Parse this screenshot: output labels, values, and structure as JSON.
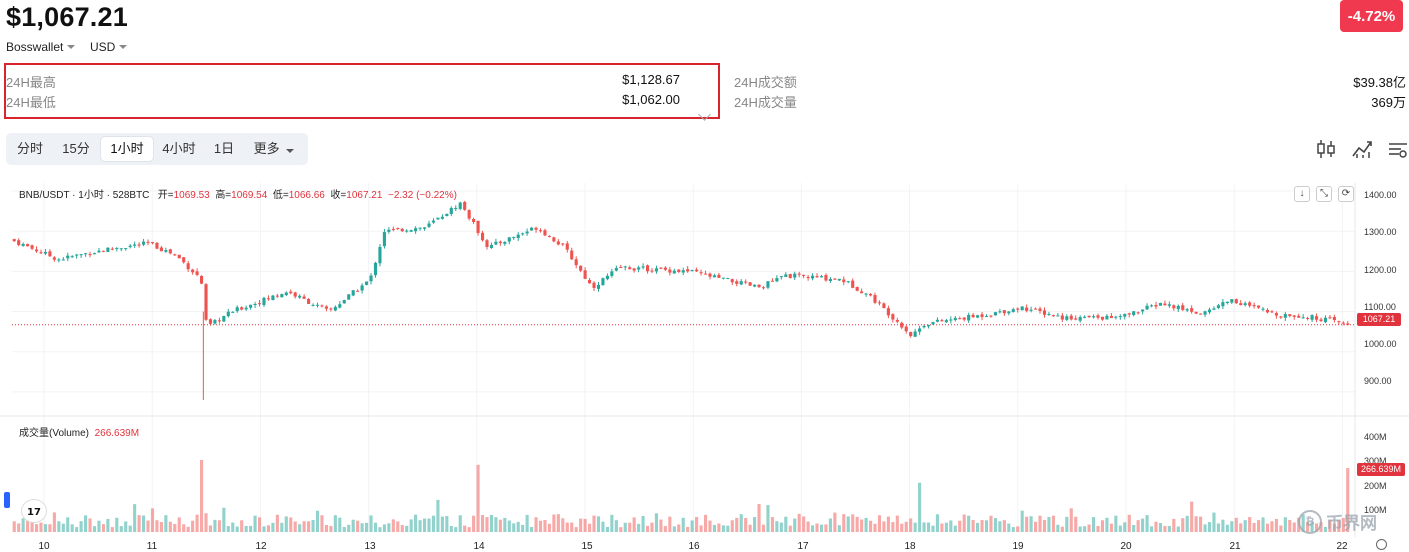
{
  "header": {
    "price": "$1,067.21",
    "change": "-4.72%",
    "exchange": "Bosswallet",
    "currency": "USD"
  },
  "stats": {
    "high_label": "24H最高",
    "high_value": "$1,128.67",
    "low_label": "24H最低",
    "low_value": "$1,062.00",
    "turnover_label": "24H成交额",
    "turnover_value": "$39.38亿",
    "volume_label": "24H成交量",
    "volume_value": "369万"
  },
  "tabs": [
    "分时",
    "15分",
    "1小时",
    "4小时",
    "1日",
    "更多"
  ],
  "active_tab": "1小时",
  "legend": {
    "symbol": "BNB/USDT · 1小时 · 528BTC",
    "open_label": "开=",
    "open": "1069.53",
    "high_label": "高=",
    "high": "1069.54",
    "low_label": "低=",
    "low": "1066.66",
    "close_label": "收=",
    "close": "1067.21",
    "change": "−2.32 (−0.22%)"
  },
  "volume_legend": {
    "label": "成交量(Volume)",
    "value": "266.639M"
  },
  "price_axis": [
    "1400.00",
    "1300.00",
    "1200.00",
    "1100.00",
    "1000.00",
    "900.00"
  ],
  "volume_axis": [
    "400M",
    "300M",
    "200M",
    "100M"
  ],
  "x_axis": [
    "10",
    "11",
    "12",
    "13",
    "14",
    "15",
    "16",
    "17",
    "18",
    "19",
    "20",
    "21",
    "22"
  ],
  "last_price_tag": "1067.21",
  "last_volume_tag": "266.639M",
  "watermark": "币界网",
  "colors": {
    "up": "#26a69a",
    "down": "#ef5350",
    "accent_red": "#e1333d",
    "badge": "#f0394f"
  },
  "chart_data": {
    "type": "candlestick",
    "price_range": [
      850,
      1420
    ],
    "volume_range": [
      0,
      450
    ],
    "close_path": [
      [
        0,
        1280
      ],
      [
        0.035,
        1230
      ],
      [
        0.07,
        1255
      ],
      [
        0.1,
        1270
      ],
      [
        0.12,
        1240
      ],
      [
        0.138,
        1180
      ],
      [
        0.142,
        1060
      ],
      [
        0.16,
        1100
      ],
      [
        0.2,
        1150
      ],
      [
        0.23,
        1100
      ],
      [
        0.26,
        1180
      ],
      [
        0.27,
        1300
      ],
      [
        0.3,
        1310
      ],
      [
        0.325,
        1370
      ],
      [
        0.345,
        1260
      ],
      [
        0.38,
        1310
      ],
      [
        0.4,
        1260
      ],
      [
        0.42,
        1160
      ],
      [
        0.44,
        1210
      ],
      [
        0.49,
        1200
      ],
      [
        0.54,
        1160
      ],
      [
        0.56,
        1190
      ],
      [
        0.6,
        1180
      ],
      [
        0.62,
        1140
      ],
      [
        0.645,
        1060
      ],
      [
        0.65,
        1040
      ],
      [
        0.66,
        1070
      ],
      [
        0.7,
        1090
      ],
      [
        0.73,
        1110
      ],
      [
        0.76,
        1085
      ],
      [
        0.8,
        1085
      ],
      [
        0.83,
        1120
      ],
      [
        0.86,
        1095
      ],
      [
        0.88,
        1130
      ],
      [
        0.91,
        1095
      ],
      [
        0.93,
        1090
      ],
      [
        0.95,
        1080
      ],
      [
        0.965,
        1067
      ]
    ],
    "wick_low": 880,
    "wick_low_x": 0.138,
    "last_volume_M": 266.639,
    "volume_spikes": [
      [
        0.138,
        420
      ],
      [
        0.139,
        300
      ],
      [
        0.338,
        280
      ],
      [
        0.657,
        205
      ],
      [
        0.966,
        266.639
      ]
    ]
  }
}
